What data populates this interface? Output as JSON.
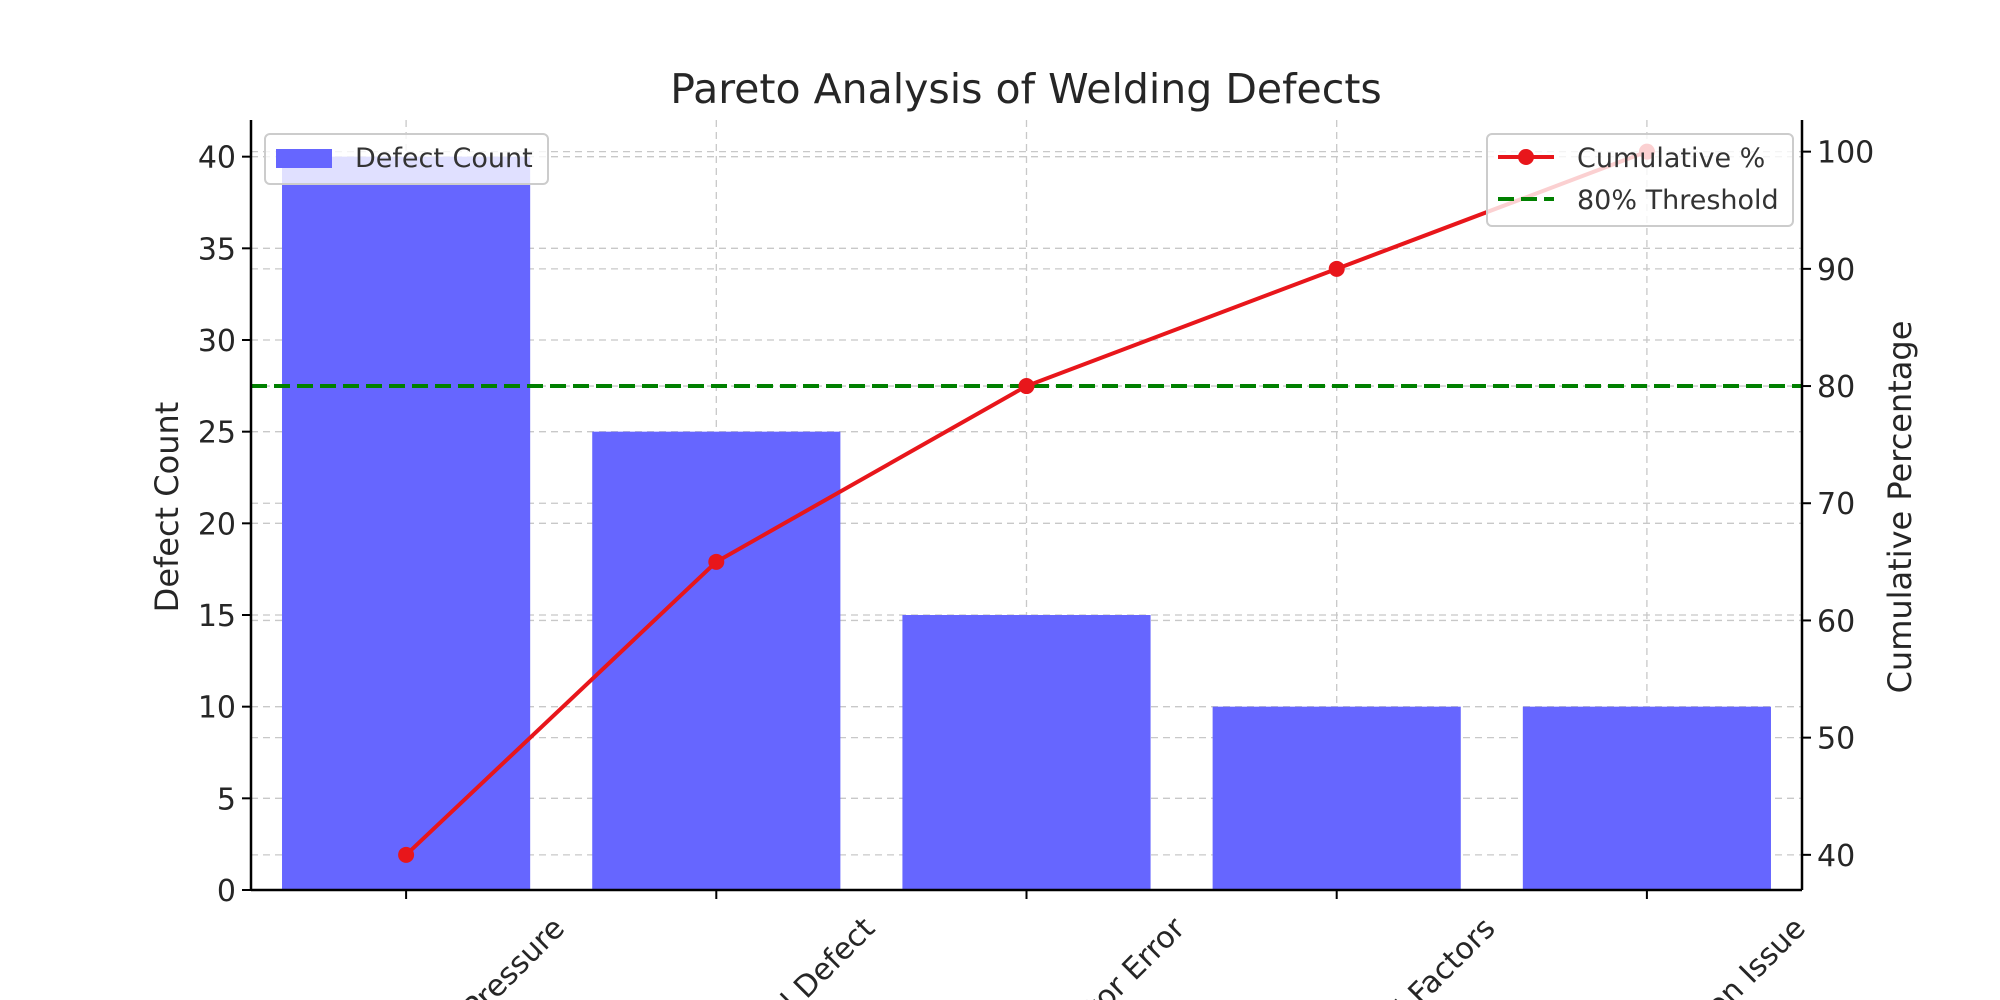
{
  "chart_data": {
    "type": "bar",
    "title": "Pareto Analysis of Welding Defects",
    "categories": [
      "Insufficient Pressure",
      "Material Defect",
      "Operator Error",
      "Environmental Factors",
      "Calibration Issue"
    ],
    "category_labels_visible": [
      "Pressure",
      "l Defect",
      "tor Error",
      "l Factors",
      "on Issue"
    ],
    "xlabel": "",
    "series": [
      {
        "name": "Defect Count",
        "type": "bar",
        "axis": "left",
        "color": "#6666ff",
        "values": [
          40,
          25,
          15,
          10,
          10
        ]
      },
      {
        "name": "Cumulative %",
        "type": "line",
        "axis": "right",
        "color": "#e8161b",
        "values": [
          40,
          65,
          80,
          90,
          100
        ]
      }
    ],
    "threshold": {
      "name": "80% Threshold",
      "value": 80,
      "axis": "right",
      "color": "#008000",
      "style": "dashed"
    },
    "y_left": {
      "label": "Defect Count",
      "lim": [
        0,
        42
      ],
      "ticks": [
        0,
        5,
        10,
        15,
        20,
        25,
        30,
        35,
        40
      ]
    },
    "y_right": {
      "label": "Cumulative Percentage",
      "lim": [
        37,
        102.7
      ],
      "ticks": [
        40,
        50,
        60,
        70,
        80,
        90,
        100
      ]
    },
    "grid": true,
    "legends": [
      {
        "placement": "top-left",
        "entries": [
          "Defect Count"
        ]
      },
      {
        "placement": "top-right",
        "entries": [
          "Cumulative %",
          "80% Threshold"
        ]
      }
    ]
  }
}
